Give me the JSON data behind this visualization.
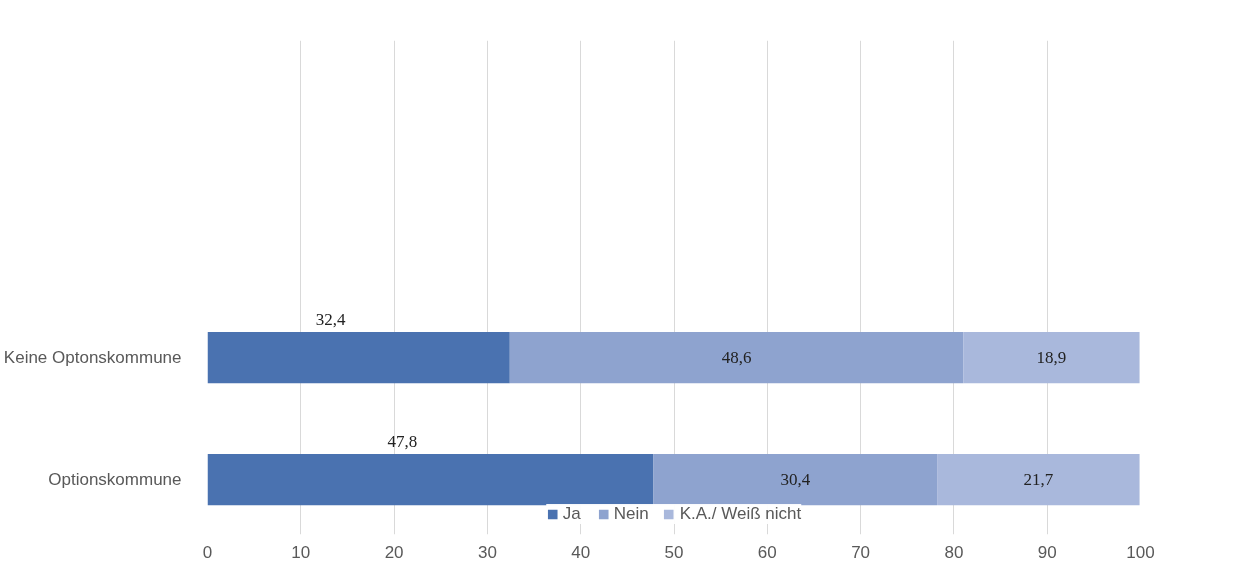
{
  "chart_data": {
    "type": "bar",
    "orientation": "horizontal",
    "stacked": true,
    "categories": [
      "Keine Optonskommune",
      "Optionskommune"
    ],
    "series": [
      {
        "name": "Ja",
        "color": "#4a72b0",
        "values": [
          32.4,
          47.8
        ],
        "value_labels": [
          "32,4",
          "47,8"
        ]
      },
      {
        "name": "Nein",
        "color": "#8ea3cf",
        "values": [
          48.6,
          30.4
        ],
        "value_labels": [
          "48,6",
          "30,4"
        ]
      },
      {
        "name": "K.A./ Weiß nicht",
        "color": "#a9b8dc",
        "values": [
          18.9,
          21.7
        ],
        "value_labels": [
          "18,9",
          "21,7"
        ]
      }
    ],
    "xlim": [
      0,
      100
    ],
    "xticks": [
      0,
      10,
      20,
      30,
      40,
      50,
      60,
      70,
      80,
      90,
      100
    ],
    "grid": "x",
    "legend": "bottom"
  }
}
